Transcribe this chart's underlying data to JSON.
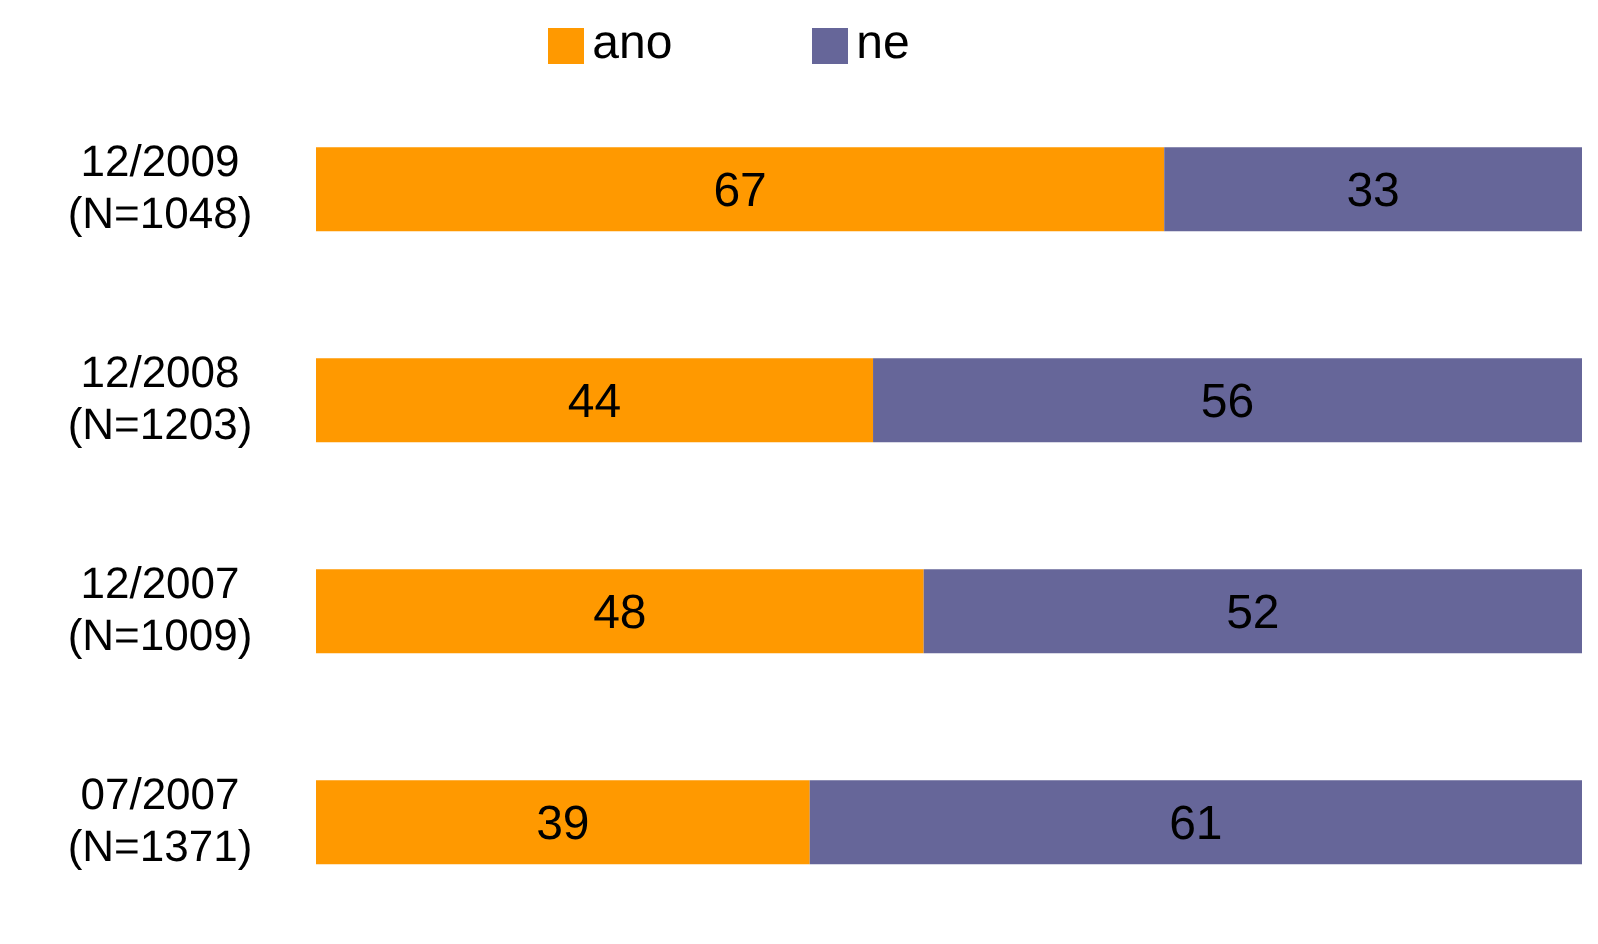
{
  "chart_data": {
    "type": "bar",
    "orientation": "horizontal",
    "stacked": true,
    "categories": [
      "12/2009\n(N=1048)",
      "12/2008\n(N=1203)",
      "12/2007\n(N=1009)",
      "07/2007\n(N=1371)"
    ],
    "series": [
      {
        "name": "ano",
        "color": "#ff9900",
        "values": [
          67,
          44,
          48,
          39
        ]
      },
      {
        "name": "ne",
        "color": "#666699",
        "values": [
          33,
          56,
          52,
          61
        ]
      }
    ],
    "xlim": [
      0,
      100
    ],
    "data_labels": true,
    "legend": "top",
    "grid": false
  }
}
